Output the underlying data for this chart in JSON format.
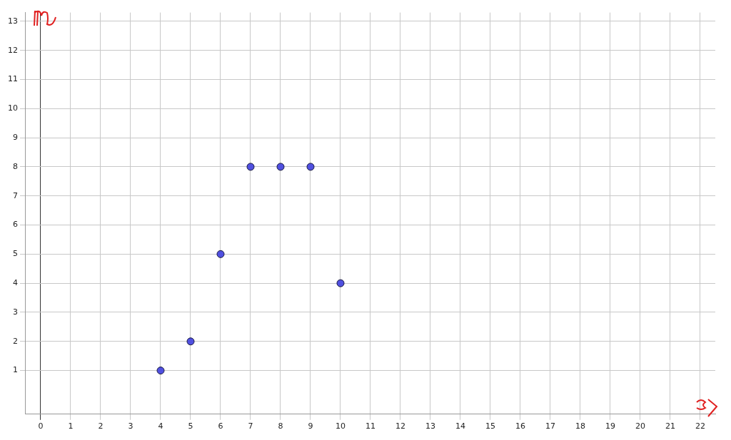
{
  "chart_data": {
    "type": "scatter",
    "x": [
      4,
      5,
      6,
      7,
      8,
      9,
      10
    ],
    "values": [
      1,
      2,
      5,
      8,
      8,
      8,
      4
    ],
    "color": "#5050e0",
    "marker": "circle",
    "xlim": [
      -0.5,
      22.5
    ],
    "ylim": [
      -0.5,
      13.3
    ],
    "xticks": [
      0,
      1,
      2,
      3,
      4,
      5,
      6,
      7,
      8,
      9,
      10,
      11,
      12,
      13,
      14,
      15,
      16,
      17,
      18,
      19,
      20,
      21,
      22
    ],
    "yticks": [
      1,
      2,
      3,
      4,
      5,
      6,
      7,
      8,
      9,
      10,
      11,
      12,
      13
    ],
    "grid": true,
    "legend": false
  }
}
